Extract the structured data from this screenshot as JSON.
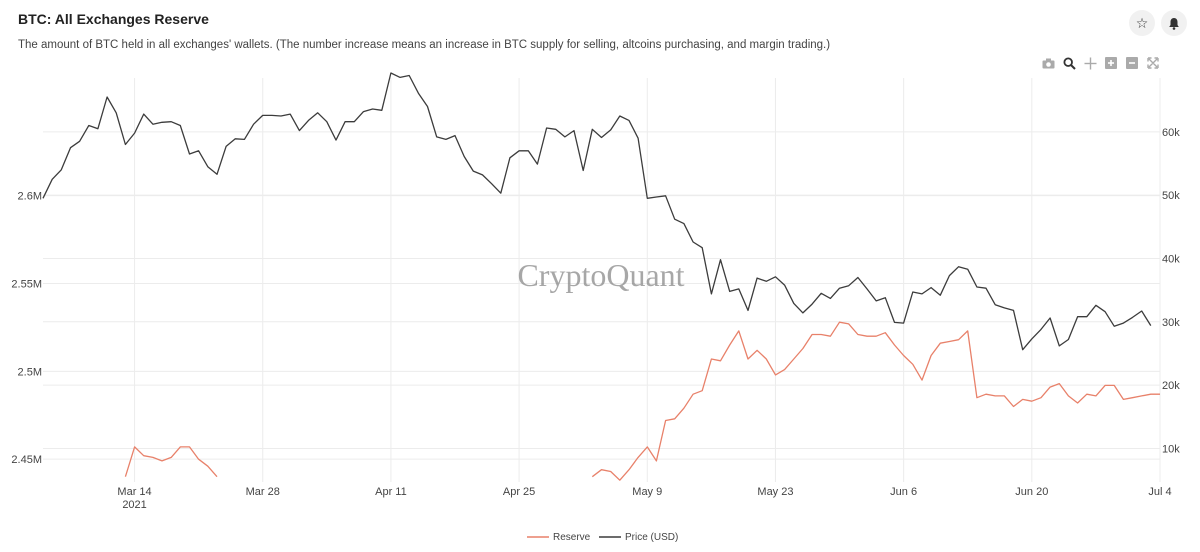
{
  "header": {
    "title": "BTC: All Exchanges Reserve",
    "subtitle": "The amount of BTC held in all exchanges' wallets. (The number increase means an increase in BTC supply for selling, altcoins purchasing, and margin trading.)",
    "star_icon": "star-icon",
    "bell_icon": "bell-icon"
  },
  "modebar": [
    "camera-icon",
    "zoom-icon",
    "pan-icon",
    "zoom-in-icon",
    "zoom-out-icon",
    "autoscale-icon"
  ],
  "watermark": "CryptoQuant",
  "colors": {
    "reserve": "#e8816a",
    "price": "#3c3c3c",
    "grid": "#ececec"
  },
  "chart_data": {
    "type": "line",
    "title": "BTC: All Exchanges Reserve",
    "x_start": "2021-03-04",
    "x_step_days": 1,
    "x_ticks": [
      {
        "day": 10,
        "label": "Mar 14",
        "sublabel": "2021"
      },
      {
        "day": 24,
        "label": "Mar 28"
      },
      {
        "day": 38,
        "label": "Apr 11"
      },
      {
        "day": 52,
        "label": "Apr 25"
      },
      {
        "day": 66,
        "label": "May 9"
      },
      {
        "day": 80,
        "label": "May 23"
      },
      {
        "day": 94,
        "label": "Jun 6"
      },
      {
        "day": 108,
        "label": "Jun 20"
      },
      {
        "day": 122,
        "label": "Jul 4"
      }
    ],
    "y_left": {
      "label": "Reserve",
      "range": [
        2.437,
        2.667
      ],
      "ticks": [
        {
          "v": 2.45,
          "label": "2.45M"
        },
        {
          "v": 2.5,
          "label": "2.5M"
        },
        {
          "v": 2.55,
          "label": "2.55M"
        },
        {
          "v": 2.6,
          "label": "2.6M"
        }
      ]
    },
    "y_right": {
      "label": "Price (USD)",
      "range": [
        4700,
        68500
      ],
      "ticks": [
        {
          "v": 10000,
          "label": "10k"
        },
        {
          "v": 20000,
          "label": "20k"
        },
        {
          "v": 30000,
          "label": "30k"
        },
        {
          "v": 40000,
          "label": "40k"
        },
        {
          "v": 50000,
          "label": "50k"
        },
        {
          "v": 60000,
          "label": "60k"
        }
      ]
    },
    "series": [
      {
        "name": "Reserve",
        "axis": "left",
        "values": [
          null,
          null,
          null,
          null,
          null,
          null,
          null,
          null,
          null,
          2.44,
          2.457,
          2.452,
          2.451,
          2.449,
          2.451,
          2.457,
          2.457,
          2.45,
          2.446,
          2.44,
          null,
          null,
          null,
          null,
          null,
          null,
          null,
          null,
          null,
          null,
          null,
          null,
          null,
          null,
          null,
          null,
          null,
          null,
          null,
          null,
          null,
          null,
          null,
          null,
          null,
          null,
          null,
          null,
          null,
          null,
          null,
          null,
          null,
          null,
          null,
          null,
          null,
          null,
          null,
          null,
          2.44,
          2.444,
          2.443,
          2.438,
          2.444,
          2.451,
          2.457,
          2.449,
          2.472,
          2.473,
          2.479,
          2.487,
          2.489,
          2.507,
          2.506,
          2.515,
          2.523,
          2.507,
          2.512,
          2.507,
          2.498,
          2.501,
          2.507,
          2.513,
          2.521,
          2.521,
          2.52,
          2.528,
          2.527,
          2.521,
          2.52,
          2.52,
          2.522,
          2.515,
          2.509,
          2.504,
          2.495,
          2.509,
          2.516,
          2.517,
          2.518,
          2.523,
          2.485,
          2.487,
          2.486,
          2.486,
          2.48,
          2.484,
          2.483,
          2.485,
          2.491,
          2.493,
          2.486,
          2.482,
          2.487,
          2.486,
          2.492,
          2.492,
          2.484,
          2.485,
          2.486,
          2.487,
          2.487
        ]
      },
      {
        "name": "Price (USD)",
        "axis": "right",
        "values": [
          49500,
          52500,
          54000,
          57500,
          58500,
          61000,
          60500,
          65500,
          63000,
          58000,
          59800,
          62800,
          61200,
          61500,
          61600,
          61000,
          56500,
          57000,
          54500,
          53300,
          57700,
          58900,
          58800,
          61200,
          62600,
          62600,
          62500,
          62800,
          60200,
          61800,
          63000,
          61600,
          58700,
          61600,
          61600,
          63200,
          63600,
          63400,
          69400,
          68600,
          68900,
          66100,
          64000,
          59200,
          58800,
          59400,
          56100,
          53800,
          53200,
          51800,
          50300,
          55900,
          57000,
          57000,
          54900,
          60600,
          60400,
          59200,
          60200,
          53900,
          60400,
          59100,
          60300,
          62500,
          61800,
          59000,
          49500,
          49700,
          49900,
          46200,
          45500,
          42600,
          41700,
          34400,
          39800,
          34800,
          35200,
          31800,
          36900,
          36400,
          37100,
          35800,
          32900,
          31400,
          32800,
          34500,
          33700,
          35300,
          35700,
          37000,
          35200,
          33300,
          33800,
          29900,
          29800,
          34700,
          34400,
          35400,
          34200,
          37300,
          38700,
          38300,
          35500,
          35300,
          32700,
          32200,
          31800,
          25600,
          27300,
          28800,
          30600,
          26200,
          27200,
          30800,
          30800,
          32600,
          31600,
          29300,
          29800,
          30700,
          31700,
          29400
        ]
      }
    ]
  },
  "legend": [
    {
      "name": "Reserve",
      "color": "#e8816a"
    },
    {
      "name": "Price (USD)",
      "color": "#3c3c3c"
    }
  ]
}
